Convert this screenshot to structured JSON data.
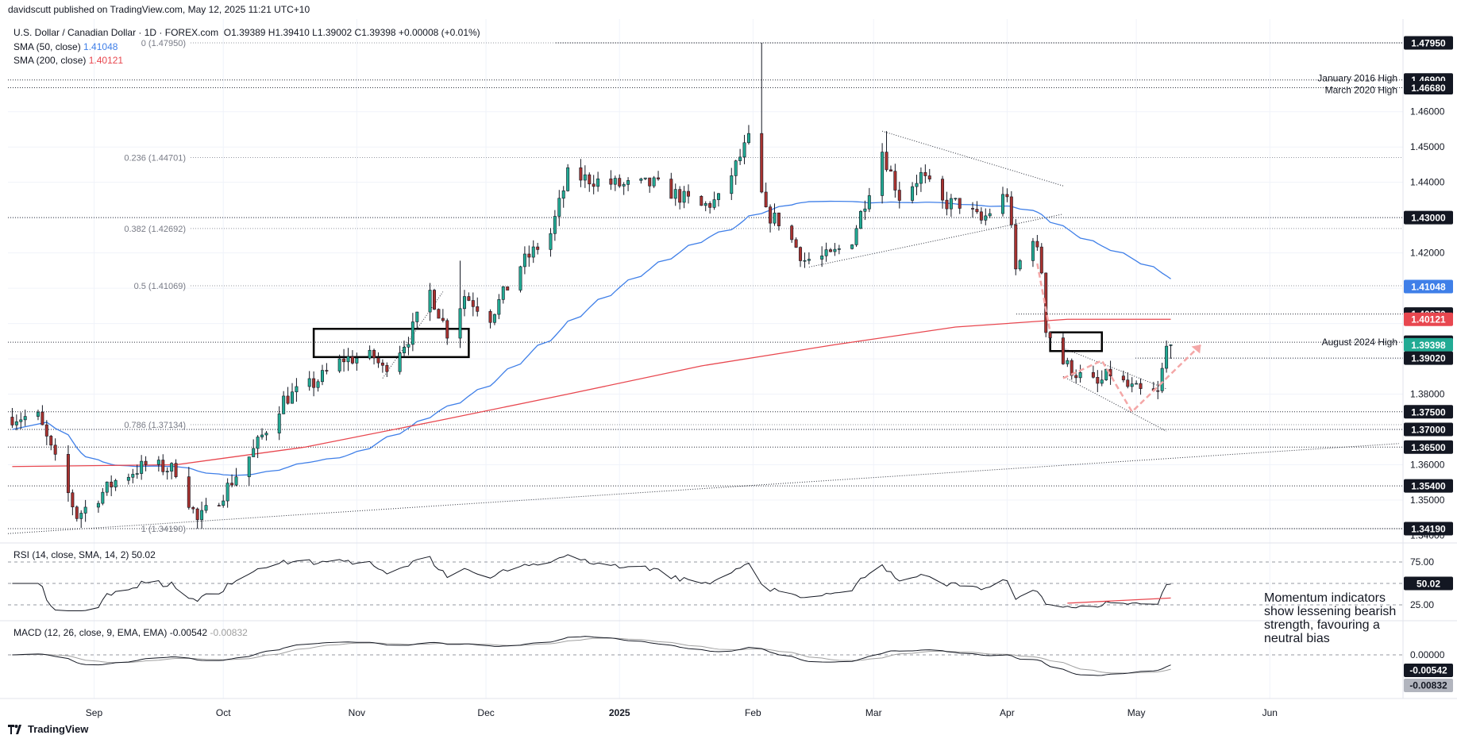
{
  "header": {
    "published_by": "davidscutt published on TradingView.com, May 12, 2025 11:21 UTC+10",
    "symbol": "U.S. Dollar / Canadian Dollar · 1D · FOREX.com",
    "ohlc": "O1.39389  H1.39410  L1.39002  C1.39398  +0.00008 (+0.01%)",
    "sma50_label": "SMA (50, close)",
    "sma50_value": "1.41048",
    "sma200_label": "SMA (200, close)",
    "sma200_value": "1.40121",
    "rsi_label": "RSI (14, close, SMA, 14, 2)",
    "rsi_value": "50.02",
    "macd_label": "MACD (12, 26, close, 9, EMA, EMA)",
    "macd_value": "-0.00542",
    "macd_signal": "-0.00832"
  },
  "annotations": {
    "jan2016": "January 2016 High",
    "mar2020": "March 2020 High",
    "aug2024": "August 2024 High",
    "callout": "Momentum indicators show lessening bearish strength, favouring a neutral bias"
  },
  "logo": "TradingView",
  "colors": {
    "up": "#22ab94",
    "down": "#a8322f",
    "sma50": "#3f7fe8",
    "sma200": "#e8474f",
    "macd": "#131722",
    "signal": "#a0a0a0",
    "rsi": "#131722",
    "arrow": "#f4a7a7"
  },
  "chart_data": {
    "type": "candlestick",
    "price_axis": {
      "ticks": [
        "1.46000",
        "1.45000",
        "1.44000",
        "1.42000",
        "1.38000",
        "1.36000",
        "1.35000",
        "1.34000"
      ],
      "badges": [
        {
          "value": "1.47950",
          "style": "black"
        },
        {
          "value": "1.46900",
          "style": "black"
        },
        {
          "value": "1.46680",
          "style": "black"
        },
        {
          "value": "1.43000",
          "style": "black"
        },
        {
          "value": "1.41048",
          "style": "blue"
        },
        {
          "value": "1.40270",
          "style": "black"
        },
        {
          "value": "1.40121",
          "style": "red"
        },
        {
          "value": "1.39470",
          "style": "black"
        },
        {
          "value": "1.39398",
          "style": "green"
        },
        {
          "value": "1.39020",
          "style": "black"
        },
        {
          "value": "1.37500",
          "style": "black"
        },
        {
          "value": "1.37000",
          "style": "black"
        },
        {
          "value": "1.36500",
          "style": "black"
        },
        {
          "value": "1.35400",
          "style": "black"
        },
        {
          "value": "1.34190",
          "style": "black"
        }
      ]
    },
    "fib_levels": [
      {
        "label": "0 (1.47950)",
        "value": 1.4795
      },
      {
        "label": "0.236 (1.44701)",
        "value": 1.44701
      },
      {
        "label": "0.382 (1.42692)",
        "value": 1.42692
      },
      {
        "label": "0.5 (1.41069)",
        "value": 1.41069
      },
      {
        "label": "0.786 (1.37134)",
        "value": 1.37134
      },
      {
        "label": "1 (1.34190)",
        "value": 1.3419
      }
    ],
    "x_labels": [
      "Sep",
      "Oct",
      "Nov",
      "Dec",
      "2025",
      "Feb",
      "Mar",
      "Apr",
      "May",
      "Jun"
    ],
    "rsi_axis": [
      "75.00",
      "25.00"
    ],
    "rsi_badge": "50.02",
    "macd_axis": [
      "0.00000"
    ],
    "macd_badges": [
      "-0.00542",
      "-0.00832"
    ],
    "waypoints": [
      {
        "d": "2024-08-19",
        "p": 1.3735
      },
      {
        "d": "2024-08-28",
        "p": 1.3455
      },
      {
        "d": "2024-09-06",
        "p": 1.3555
      },
      {
        "d": "2024-09-13",
        "p": 1.36
      },
      {
        "d": "2024-09-20",
        "p": 1.3585
      },
      {
        "d": "2024-09-25",
        "p": 1.344
      },
      {
        "d": "2024-10-01",
        "p": 1.352
      },
      {
        "d": "2024-10-08",
        "p": 1.364
      },
      {
        "d": "2024-10-15",
        "p": 1.3785
      },
      {
        "d": "2024-10-22",
        "p": 1.383
      },
      {
        "d": "2024-10-29",
        "p": 1.39
      },
      {
        "d": "2024-11-05",
        "p": 1.3905
      },
      {
        "d": "2024-11-07",
        "p": 1.387
      },
      {
        "d": "2024-11-13",
        "p": 1.396
      },
      {
        "d": "2024-11-18",
        "p": 1.409
      },
      {
        "d": "2024-11-22",
        "p": 1.3975
      },
      {
        "d": "2024-11-26",
        "p": 1.408
      },
      {
        "d": "2024-12-02",
        "p": 1.402
      },
      {
        "d": "2024-12-09",
        "p": 1.4165
      },
      {
        "d": "2024-12-16",
        "p": 1.4255
      },
      {
        "d": "2024-12-20",
        "p": 1.442
      },
      {
        "d": "2025-01-02",
        "p": 1.439
      },
      {
        "d": "2025-01-09",
        "p": 1.4395
      },
      {
        "d": "2025-01-15",
        "p": 1.436
      },
      {
        "d": "2025-01-20",
        "p": 1.433
      },
      {
        "d": "2025-01-24",
        "p": 1.435
      },
      {
        "d": "2025-01-31",
        "p": 1.452
      },
      {
        "d": "2025-02-04",
        "p": 1.431
      },
      {
        "d": "2025-02-07",
        "p": 1.429
      },
      {
        "d": "2025-02-13",
        "p": 1.418
      },
      {
        "d": "2025-02-19",
        "p": 1.419
      },
      {
        "d": "2025-02-24",
        "p": 1.424
      },
      {
        "d": "2025-03-03",
        "p": 1.449
      },
      {
        "d": "2025-03-07",
        "p": 1.436
      },
      {
        "d": "2025-03-12",
        "p": 1.442
      },
      {
        "d": "2025-03-17",
        "p": 1.434
      },
      {
        "d": "2025-03-21",
        "p": 1.434
      },
      {
        "d": "2025-03-26",
        "p": 1.429
      },
      {
        "d": "2025-04-01",
        "p": 1.437
      },
      {
        "d": "2025-04-03",
        "p": 1.415
      },
      {
        "d": "2025-04-07",
        "p": 1.425
      },
      {
        "d": "2025-04-09",
        "p": 1.415
      },
      {
        "d": "2025-04-10",
        "p": 1.399
      },
      {
        "d": "2025-04-14",
        "p": 1.389
      },
      {
        "d": "2025-04-18",
        "p": 1.385
      },
      {
        "d": "2025-04-22",
        "p": 1.3825
      },
      {
        "d": "2025-04-25",
        "p": 1.386
      },
      {
        "d": "2025-04-29",
        "p": 1.382
      },
      {
        "d": "2025-05-02",
        "p": 1.3805
      },
      {
        "d": "2025-05-06",
        "p": 1.38
      },
      {
        "d": "2025-05-08",
        "p": 1.393
      },
      {
        "d": "2025-05-09",
        "p": 1.394
      }
    ]
  }
}
